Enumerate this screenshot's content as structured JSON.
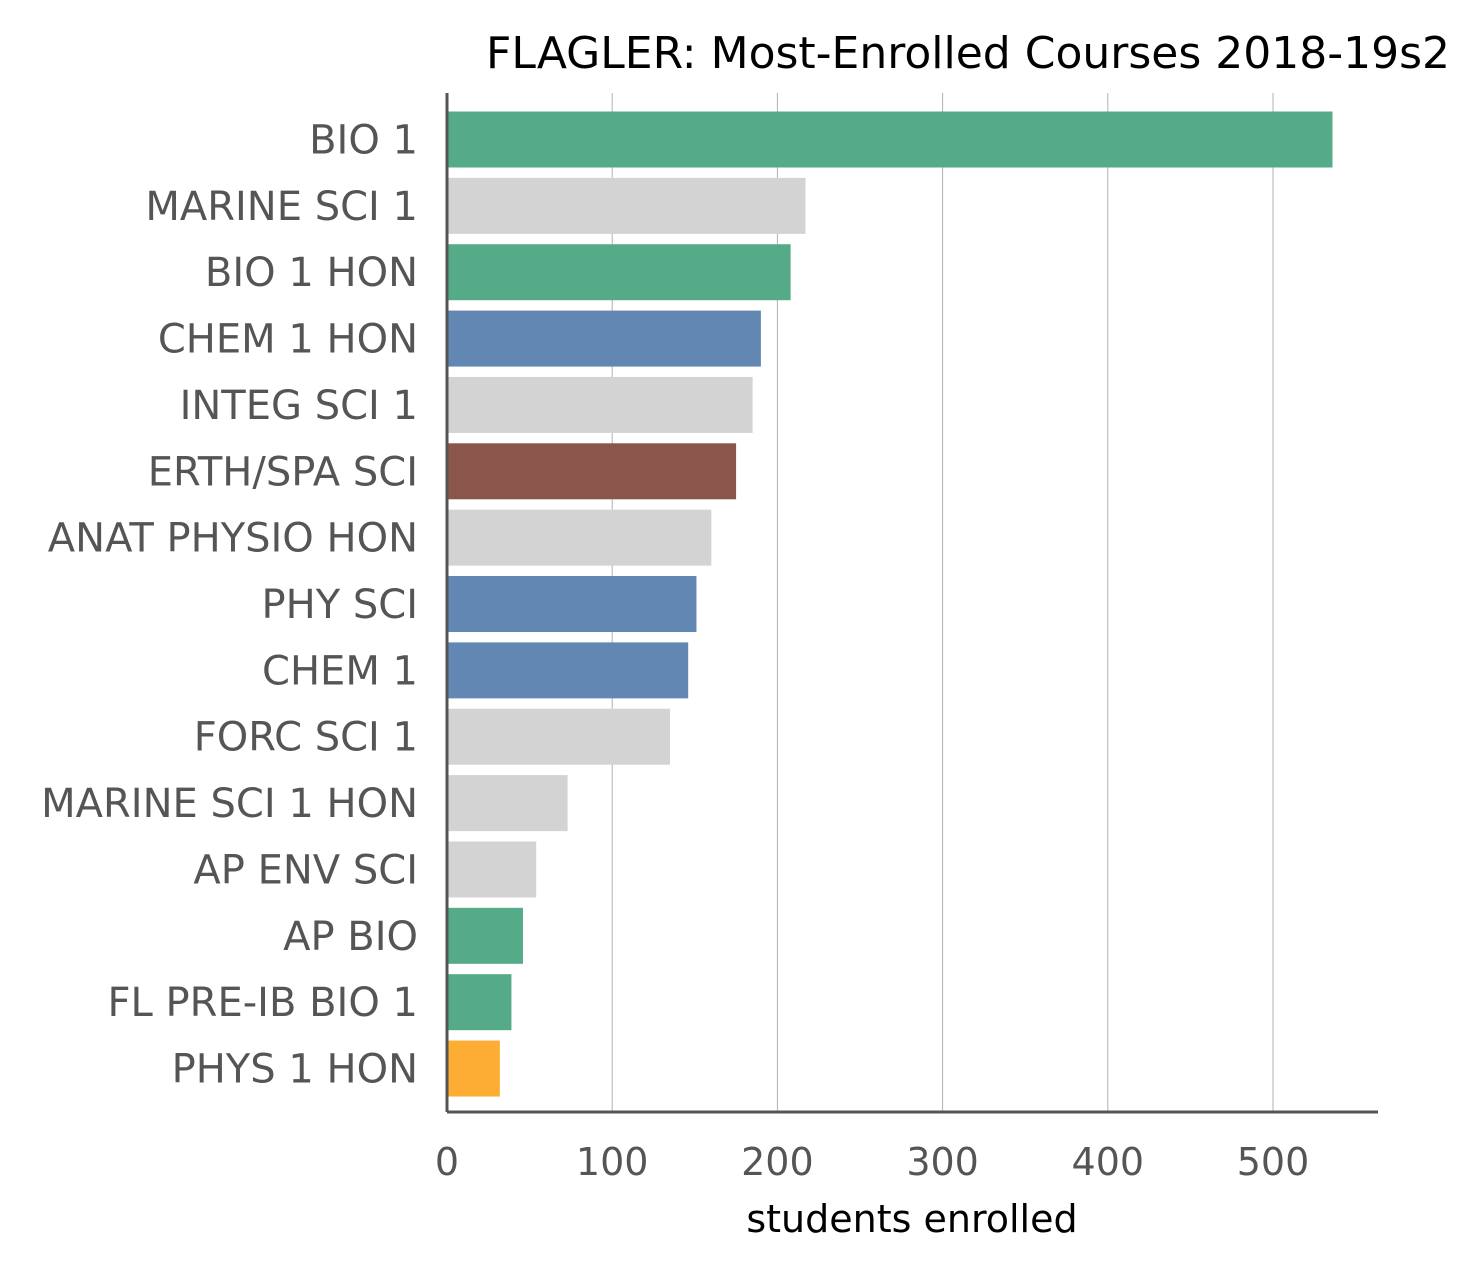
{
  "chart_data": {
    "type": "bar",
    "orientation": "horizontal",
    "title": "FLAGLER: Most-Enrolled Courses 2018-19s2",
    "xlabel": "students enrolled",
    "ylabel": "",
    "xlim": [
      0,
      565
    ],
    "xticks": [
      0,
      100,
      200,
      300,
      400,
      500
    ],
    "grid": "vertical",
    "categories": [
      "BIO 1",
      "MARINE SCI 1",
      "BIO 1 HON",
      "CHEM 1 HON",
      "INTEG SCI 1",
      "ERTH/SPA SCI",
      "ANAT PHYSIO HON",
      "PHY SCI",
      "CHEM 1",
      "FORC SCI 1",
      "MARINE SCI 1 HON",
      "AP ENV SCI",
      "AP BIO",
      "FL PRE-IB BIO 1",
      "PHYS 1 HON"
    ],
    "values": [
      536,
      217,
      208,
      190,
      185,
      175,
      160,
      151,
      146,
      135,
      73,
      54,
      46,
      39,
      32
    ],
    "colors": [
      "#55ab87",
      "#d3d3d3",
      "#55ab87",
      "#6287b2",
      "#d3d3d3",
      "#8a554a",
      "#d3d3d3",
      "#6287b2",
      "#6287b2",
      "#d3d3d3",
      "#d3d3d3",
      "#d3d3d3",
      "#55ab87",
      "#55ab87",
      "#fdad33"
    ]
  }
}
